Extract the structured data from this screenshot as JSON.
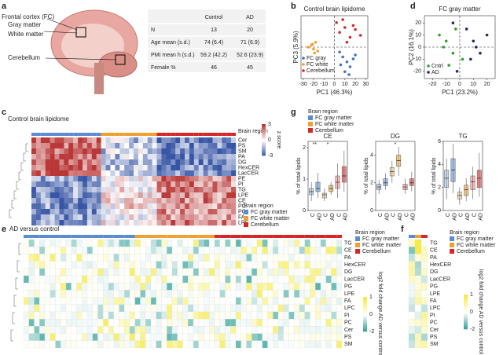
{
  "letters": {
    "a": "a",
    "b": "b",
    "c": "c",
    "d": "d",
    "e": "e",
    "f": "f",
    "g": "g"
  },
  "a": {
    "labels": [
      "Frontal cortex (FC)",
      "Gray matter",
      "White matter",
      "Cerebellum"
    ],
    "table": {
      "header": [
        "Control",
        "AD"
      ],
      "rows": [
        [
          "N",
          "13",
          "20"
        ],
        [
          "Age mean (s.d.)",
          "74 (6.4)",
          "71 (6.9)"
        ],
        [
          "PMI mean h (s.d.)",
          "59.2 (42.2)",
          "52.6 (23.9)"
        ],
        [
          "Female %",
          "46",
          "45"
        ]
      ]
    }
  },
  "b": {
    "type": "scatter",
    "title": "Control brain lipidome",
    "xlabel": "PC1 (46.3%)",
    "ylabel": "PC3 (5.9%)",
    "xlim": [
      -32,
      32
    ],
    "ylim": [
      -32,
      32
    ],
    "xticks": [
      -30,
      -20,
      -10,
      0,
      10,
      20,
      30
    ],
    "series": [
      {
        "name": "FC gray",
        "color": "#4472c4",
        "x": [
          5,
          8,
          12,
          15,
          18,
          10,
          6,
          20,
          14
        ],
        "y": [
          -5,
          -10,
          -15,
          -20,
          -12,
          -25,
          -18,
          -8,
          -28
        ]
      },
      {
        "name": "FC white",
        "color": "#f0a030",
        "x": [
          -22,
          -20,
          -18,
          -25,
          -16,
          -21,
          -19
        ],
        "y": [
          2,
          -2,
          5,
          0,
          -4,
          3,
          -6
        ]
      },
      {
        "name": "Cerebellum",
        "color": "#d62728",
        "x": [
          2,
          5,
          10,
          15,
          20,
          8,
          12,
          18,
          25
        ],
        "y": [
          25,
          15,
          20,
          10,
          18,
          28,
          5,
          22,
          12
        ]
      }
    ]
  },
  "d": {
    "type": "scatter",
    "title": "FC gray matter",
    "xlabel": "PC1 (23.2%)",
    "ylabel": "PC2 (16.1%)",
    "xlim": [
      -26,
      26
    ],
    "ylim": [
      -26,
      26
    ],
    "xticks": [
      -20,
      -10,
      0,
      10,
      20
    ],
    "yticks": [
      -20,
      -10,
      0,
      10,
      20
    ],
    "series": [
      {
        "name": "Cntrl",
        "color": "#2ca02c",
        "x": [
          -15,
          -10,
          -5,
          -8,
          2,
          -12,
          -3
        ],
        "y": [
          10,
          5,
          -5,
          -15,
          -10,
          0,
          15
        ]
      },
      {
        "name": "AD",
        "color": "#1f2a6b",
        "x": [
          5,
          10,
          15,
          -5,
          8,
          20,
          -2,
          12
        ],
        "y": [
          15,
          5,
          -5,
          20,
          -10,
          10,
          -20,
          0
        ]
      }
    ]
  },
  "c": {
    "title": "Control brain lipidome",
    "rows": [
      "Cer",
      "PS",
      "SM",
      "PA",
      "DG",
      "HexCER",
      "LacCER",
      "PE",
      "PI",
      "TG",
      "LPE",
      "CE",
      "PC",
      "PG",
      "FA",
      "LPC"
    ],
    "strip_label": "Brain region",
    "colorbar_label": "z score",
    "colorbar_ticks": [
      3,
      0,
      -3
    ],
    "legend_title": "Brain region",
    "legend": [
      {
        "name": "FC gray matter",
        "color": "#5b8bd0"
      },
      {
        "name": "FC white matter",
        "color": "#f0a030"
      },
      {
        "name": "Cerebellum",
        "color": "#d62728"
      }
    ]
  },
  "g": {
    "type": "box",
    "legend_title": "Brain region",
    "legend": [
      {
        "name": "FC gray matter",
        "color": "#5b8bd0"
      },
      {
        "name": "FC white matter",
        "color": "#f0a030"
      },
      {
        "name": "Cerebellum",
        "color": "#d62728"
      }
    ],
    "ylabel": "% of total lipids",
    "categories": [
      "C",
      "AD",
      "C",
      "AD",
      "C",
      "AD"
    ],
    "panels": [
      {
        "title": "CE",
        "ylim": [
          0,
          2.2
        ],
        "yticks": [
          0,
          1,
          2
        ],
        "boxes": [
          [
            0.3,
            0.5,
            0.6,
            0.7,
            0.9
          ],
          [
            0.4,
            0.6,
            0.7,
            0.9,
            1.2
          ],
          [
            0.3,
            0.4,
            0.5,
            0.55,
            0.7
          ],
          [
            0.5,
            0.6,
            0.7,
            0.8,
            0.9
          ],
          [
            0.4,
            0.7,
            0.9,
            1.1,
            1.5
          ],
          [
            0.6,
            0.9,
            1.1,
            1.4,
            1.9
          ]
        ],
        "annotations": [
          "**",
          "*",
          null
        ]
      },
      {
        "title": "DG",
        "ylim": [
          0,
          5
        ],
        "yticks": [
          0,
          2,
          4
        ],
        "boxes": [
          [
            1.2,
            1.5,
            1.7,
            1.9,
            2.2
          ],
          [
            1.5,
            1.8,
            2,
            2.3,
            2.7
          ],
          [
            2,
            2.5,
            2.8,
            3.1,
            3.6
          ],
          [
            2.5,
            3.2,
            3.6,
            4,
            4.6
          ],
          [
            1.2,
            1.5,
            1.7,
            1.9,
            2.3
          ],
          [
            1.4,
            1.8,
            2,
            2.3,
            2.8
          ]
        ],
        "annotations": [
          null,
          "*",
          null
        ]
      },
      {
        "title": "TG",
        "ylim": [
          0,
          6
        ],
        "yticks": [
          0,
          2,
          4,
          6
        ],
        "boxes": [
          [
            1,
            2,
            2.8,
            3.5,
            4.5
          ],
          [
            1.5,
            2.5,
            3.5,
            4.5,
            5.8
          ],
          [
            0.5,
            1,
            1.3,
            1.6,
            2
          ],
          [
            0.8,
            1.3,
            1.8,
            2.2,
            2.8
          ],
          [
            1,
            1.8,
            2.5,
            3,
            3.8
          ],
          [
            1.2,
            2,
            2.8,
            3.5,
            5
          ]
        ],
        "annotations": [
          null,
          null,
          null
        ]
      }
    ]
  },
  "e": {
    "title": "AD versus control",
    "rows": [
      "TG",
      "CE",
      "PA",
      "HexCER",
      "DG",
      "LacCER",
      "PG",
      "LPE",
      "FA",
      "LPC",
      "PI",
      "PC",
      "Cer",
      "PS",
      "SM"
    ],
    "colorbar_label": "log2 fold change AD versus control",
    "colorbar_ticks": [
      1,
      0,
      -2
    ],
    "legend_title": "Brain region",
    "legend": [
      {
        "name": "FC gray matter",
        "color": "#5b8bd0"
      },
      {
        "name": "FC white matter",
        "color": "#f0a030"
      },
      {
        "name": "Cerebellum",
        "color": "#d62728"
      }
    ]
  },
  "f": {
    "rows": [
      "TG",
      "CE",
      "PA",
      "HexCER",
      "DG",
      "LacCER",
      "PG",
      "LPE",
      "FA",
      "LPC",
      "PI",
      "PC",
      "Cer",
      "PS",
      "SM"
    ],
    "colorbar_label": "log2 fold change AD versus control",
    "colorbar_ticks": [
      1,
      0,
      -2
    ],
    "legend_title": "Brain region",
    "legend": [
      {
        "name": "FC gray matter",
        "color": "#5b8bd0"
      },
      {
        "name": "FC white matter",
        "color": "#f0a030"
      },
      {
        "name": "Cerebellum",
        "color": "#d62728"
      }
    ]
  }
}
